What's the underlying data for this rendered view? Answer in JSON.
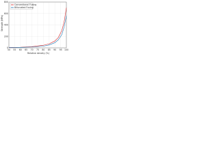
{
  "chart_data": {
    "type": "line",
    "x_label": "Relative density (%)",
    "y_label": "Strength (MPa)",
    "x": [
      50,
      60,
      70,
      80,
      85,
      90,
      93,
      96,
      98,
      100
    ],
    "series": [
      {
        "name": "Conventional Fusing",
        "color": "#d62728",
        "values": [
          5,
          10,
          20,
          45,
          70,
          120,
          180,
          300,
          450,
          700
        ]
      },
      {
        "name": "Bifurcated Fusing",
        "color": "#1f77b4",
        "values": [
          5,
          8,
          15,
          30,
          50,
          90,
          140,
          230,
          360,
          560
        ]
      }
    ],
    "xlim": [
      50,
      100
    ],
    "xticks": [
      50,
      55,
      60,
      65,
      70,
      75,
      80,
      85,
      90,
      95,
      100
    ],
    "ylim": [
      0,
      800
    ],
    "yticks": [
      0,
      200,
      400,
      600,
      800
    ],
    "grid": true,
    "legend": "upper left"
  }
}
